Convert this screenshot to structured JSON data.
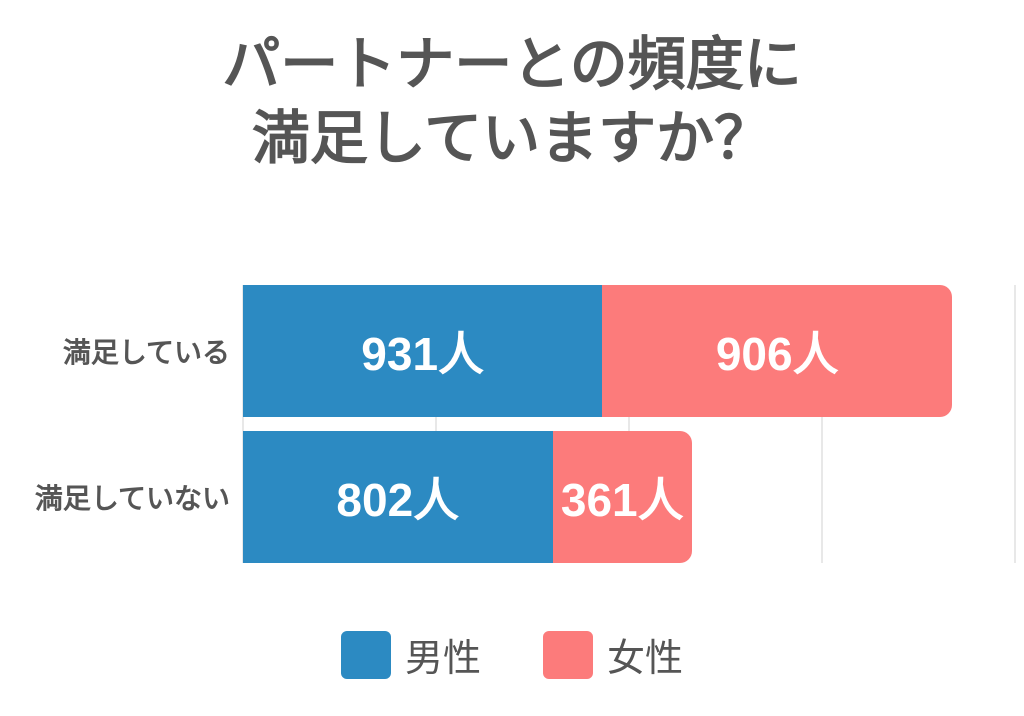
{
  "title": {
    "line1": "パートナーとの頻度に",
    "line2": "満足していますか？"
  },
  "chart_data": {
    "type": "bar",
    "orientation": "horizontal",
    "stacked": true,
    "categories": [
      "満足している",
      "満足していない"
    ],
    "series": [
      {
        "name": "男性",
        "color": "#2c8ac2",
        "values": [
          931,
          802
        ]
      },
      {
        "name": "女性",
        "color": "#fc7b7b",
        "values": [
          906,
          361
        ]
      }
    ],
    "bar_labels": [
      [
        "931人",
        "906人"
      ],
      [
        "802人",
        "361人"
      ]
    ],
    "value_suffix": "人",
    "xlim": [
      0,
      2000
    ],
    "gridline_interval": 500,
    "grid": true,
    "axis_tick_labels_visible": false,
    "legend_position": "bottom"
  },
  "legend": {
    "items": [
      {
        "label": "男性",
        "color": "#2c8ac2"
      },
      {
        "label": "女性",
        "color": "#fc7b7b"
      }
    ]
  },
  "colors": {
    "male": "#2c8ac2",
    "female": "#fc7b7b",
    "title_text": "#555555",
    "category_text": "#555555",
    "bar_value_text": "#ffffff",
    "gridline": "#e8e8e8",
    "background": "#ffffff"
  }
}
